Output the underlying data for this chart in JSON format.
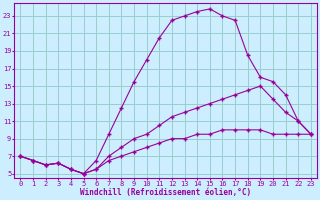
{
  "title": "",
  "xlabel": "Windchill (Refroidissement éolien,°C)",
  "ylabel": "",
  "bg_color": "#cceeff",
  "line_color": "#990099",
  "grid_color": "#99cccc",
  "x_ticks": [
    0,
    1,
    2,
    3,
    4,
    5,
    6,
    7,
    8,
    9,
    10,
    11,
    12,
    13,
    14,
    15,
    16,
    17,
    18,
    19,
    20,
    21,
    22,
    23
  ],
  "y_ticks": [
    5,
    7,
    9,
    11,
    13,
    15,
    17,
    19,
    21,
    23
  ],
  "xlim": [
    -0.5,
    23.5
  ],
  "ylim": [
    4.5,
    24.5
  ],
  "line3_x": [
    0,
    1,
    2,
    3,
    4,
    5,
    6,
    7,
    8,
    9,
    10,
    11,
    12,
    13,
    14,
    15,
    16,
    17,
    18,
    19,
    20,
    21,
    22,
    23
  ],
  "line3_y": [
    7.0,
    6.5,
    6.0,
    6.2,
    5.5,
    5.0,
    6.5,
    9.5,
    12.5,
    15.5,
    18.0,
    20.5,
    22.5,
    23.0,
    23.5,
    23.8,
    23.0,
    22.5,
    18.5,
    16.0,
    15.5,
    14.0,
    11.0,
    9.5
  ],
  "line1_x": [
    0,
    1,
    2,
    3,
    4,
    5,
    6,
    7,
    8,
    9,
    10,
    11,
    12,
    13,
    14,
    15,
    16,
    17,
    18,
    19,
    20,
    21,
    22,
    23
  ],
  "line1_y": [
    7.0,
    6.5,
    6.0,
    6.2,
    5.5,
    5.0,
    5.5,
    7.0,
    8.0,
    9.0,
    9.5,
    10.5,
    11.5,
    12.0,
    12.5,
    13.0,
    13.5,
    14.0,
    14.5,
    15.0,
    13.5,
    12.0,
    11.0,
    9.5
  ],
  "line2_x": [
    0,
    1,
    2,
    3,
    4,
    5,
    6,
    7,
    8,
    9,
    10,
    11,
    12,
    13,
    14,
    15,
    16,
    17,
    18,
    19,
    20,
    21,
    22,
    23
  ],
  "line2_y": [
    7.0,
    6.5,
    6.0,
    6.2,
    5.5,
    5.0,
    5.5,
    6.5,
    7.0,
    7.5,
    8.0,
    8.5,
    9.0,
    9.0,
    9.5,
    9.5,
    10.0,
    10.0,
    10.0,
    10.0,
    9.5,
    9.5,
    9.5,
    9.5
  ]
}
